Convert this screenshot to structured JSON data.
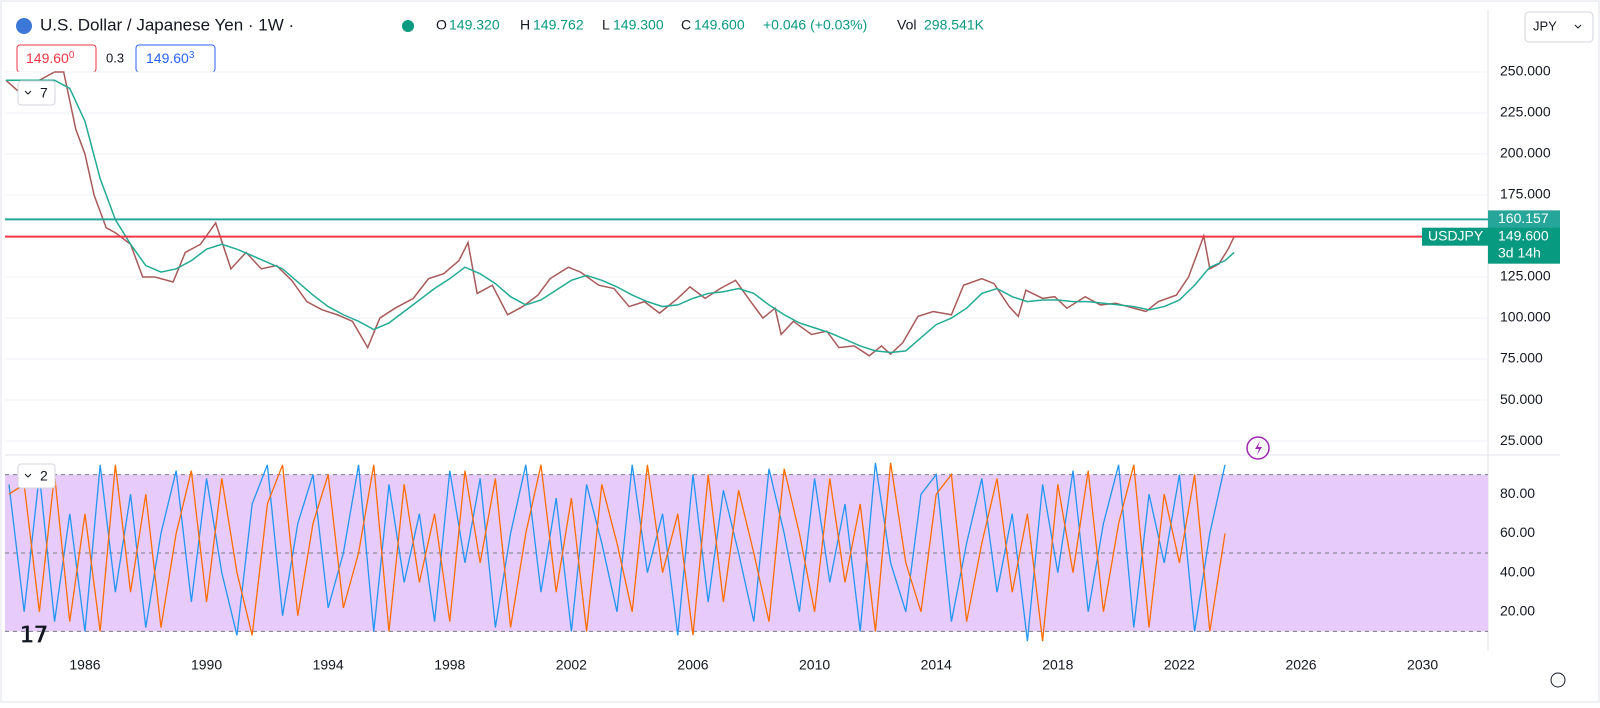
{
  "header": {
    "symbol": "U.S. Dollar / Japanese Yen · 1W ·",
    "open_label": "O",
    "open": "149.320",
    "high_label": "H",
    "high": "149.762",
    "low_label": "L",
    "low": "149.300",
    "close_label": "C",
    "close": "149.600",
    "change": "+0.046 (+0.03%)",
    "vol_label": "Vol",
    "volume": "298.541K",
    "currency": "JPY",
    "countdown": "3d 14h"
  },
  "quote": {
    "bid": "149.60",
    "bid_sup": "0",
    "spread": "0.3",
    "ask": "149.60",
    "ask_sup": "3"
  },
  "indicators": [
    {
      "label": "7"
    },
    {
      "label": "2"
    }
  ],
  "chart_data": [
    {
      "type": "line",
      "xlim": [
        1983.37,
        2032.15
      ],
      "ylim": [
        16.5,
        287.8
      ],
      "yticks": [
        {
          "value": 25,
          "label": "25.000"
        },
        {
          "value": 50,
          "label": "50.000"
        },
        {
          "value": 75,
          "label": "75.000"
        },
        {
          "value": 100,
          "label": "100.000"
        },
        {
          "value": 125,
          "label": "125.000"
        },
        {
          "value": 175,
          "label": "175.000"
        },
        {
          "value": 200,
          "label": "200.000"
        },
        {
          "value": 225,
          "label": "225.000"
        },
        {
          "value": 250,
          "label": "250.000"
        }
      ],
      "grid": true,
      "hlines": [
        {
          "value": 160.157,
          "label": "160.157",
          "color": "#26a69a"
        },
        {
          "value": 149.6,
          "label": "149.600",
          "color": "#f23645"
        }
      ],
      "series": [
        {
          "name": "USDJPY",
          "color": "#a85a5a",
          "x": [
            1983.4,
            1984.0,
            1984.5,
            1985.0,
            1985.3,
            1985.7,
            1986.0,
            1986.3,
            1986.7,
            1987.0,
            1987.5,
            1987.9,
            1988.3,
            1988.9,
            1989.3,
            1989.8,
            1990.3,
            1990.8,
            1991.3,
            1991.8,
            1992.3,
            1992.8,
            1993.3,
            1993.8,
            1994.3,
            1994.8,
            1995.3,
            1995.7,
            1996.2,
            1996.8,
            1997.3,
            1997.8,
            1998.3,
            1998.6,
            1998.9,
            1999.4,
            1999.9,
            2000.4,
            2000.9,
            2001.3,
            2001.9,
            2002.3,
            2002.9,
            2003.4,
            2003.9,
            2004.4,
            2004.9,
            2005.5,
            2005.9,
            2006.4,
            2006.9,
            2007.4,
            2007.9,
            2008.3,
            2008.7,
            2008.9,
            2009.3,
            2009.9,
            2010.4,
            2010.8,
            2011.3,
            2011.8,
            2012.2,
            2012.5,
            2012.9,
            2013.4,
            2013.9,
            2014.5,
            2014.9,
            2015.5,
            2015.9,
            2016.4,
            2016.7,
            2016.95,
            2017.5,
            2017.9,
            2018.3,
            2018.9,
            2019.4,
            2019.9,
            2020.3,
            2020.9,
            2021.3,
            2021.9,
            2022.3,
            2022.8,
            2023.0,
            2023.3,
            2023.6,
            2023.8
          ],
          "values": [
            245,
            235,
            245,
            250,
            250,
            215,
            200,
            175,
            155,
            152,
            145,
            125,
            125,
            122,
            140,
            145,
            158,
            130,
            140,
            130,
            132,
            123,
            110,
            105,
            102,
            98,
            82,
            100,
            106,
            112,
            124,
            127,
            135,
            146,
            115,
            120,
            102,
            107,
            114,
            124,
            131,
            128,
            120,
            118,
            107,
            110,
            103,
            112,
            119,
            112,
            118,
            123,
            110,
            100,
            106,
            90,
            98,
            90,
            92,
            82,
            83,
            77,
            83,
            78,
            85,
            101,
            104,
            102,
            120,
            124,
            121,
            107,
            101,
            117,
            112,
            113,
            106,
            113,
            108,
            109,
            107,
            104,
            110,
            114,
            125,
            150,
            130,
            133,
            142,
            149.6
          ]
        },
        {
          "color": "#22ab94",
          "x": [
            1983.4,
            1985.0,
            1985.5,
            1986.0,
            1986.5,
            1987.0,
            1987.5,
            1988.0,
            1988.5,
            1989.0,
            1989.5,
            1990.0,
            1990.5,
            1991.0,
            1991.5,
            1992.0,
            1992.5,
            1993.0,
            1993.5,
            1994.0,
            1994.5,
            1995.0,
            1995.5,
            1996.0,
            1996.5,
            1997.0,
            1997.5,
            1998.0,
            1998.5,
            1999.0,
            1999.5,
            2000.0,
            2000.5,
            2001.0,
            2001.5,
            2002.0,
            2002.5,
            2003.0,
            2003.5,
            2004.0,
            2004.5,
            2005.0,
            2005.5,
            2006.0,
            2006.5,
            2007.0,
            2007.5,
            2008.0,
            2008.5,
            2009.0,
            2009.5,
            2010.0,
            2010.5,
            2011.0,
            2011.5,
            2012.0,
            2012.5,
            2013.0,
            2013.5,
            2014.0,
            2014.5,
            2015.0,
            2015.5,
            2016.0,
            2016.5,
            2017.0,
            2017.5,
            2018.0,
            2018.5,
            2019.0,
            2019.5,
            2020.0,
            2020.5,
            2021.0,
            2021.5,
            2022.0,
            2022.5,
            2023.0,
            2023.5,
            2023.8
          ],
          "values": [
            245,
            245,
            240,
            220,
            185,
            160,
            145,
            132,
            128,
            130,
            135,
            142,
            145,
            142,
            138,
            134,
            130,
            122,
            114,
            107,
            102,
            98,
            93,
            97,
            104,
            111,
            118,
            124,
            131,
            127,
            121,
            113,
            108,
            111,
            117,
            123,
            126,
            123,
            119,
            114,
            110,
            107,
            108,
            112,
            115,
            116,
            118,
            115,
            108,
            102,
            97,
            94,
            91,
            87,
            83,
            80,
            79,
            80,
            88,
            96,
            100,
            106,
            115,
            118,
            113,
            110,
            111,
            111,
            110,
            110,
            109,
            108,
            107,
            105,
            107,
            111,
            120,
            131,
            135,
            140
          ]
        }
      ]
    },
    {
      "type": "line",
      "xlim": [
        1983.37,
        2032.15
      ],
      "ylim": [
        0,
        100
      ],
      "xticks": [
        1986,
        1990,
        1994,
        1998,
        2002,
        2006,
        2010,
        2014,
        2018,
        2022,
        2026,
        2030
      ],
      "yticks": [
        {
          "value": 20,
          "label": "20.00"
        },
        {
          "value": 40,
          "label": "40.00"
        },
        {
          "value": 60,
          "label": "60.00"
        },
        {
          "value": 80,
          "label": "80.00"
        }
      ],
      "levels": [
        90,
        50,
        10
      ],
      "band_color": "#e7ccfb",
      "x": [
        1983.5,
        1984,
        1984.5,
        1985,
        1985.5,
        1986,
        1986.5,
        1987,
        1987.5,
        1988,
        1988.5,
        1989,
        1989.5,
        1990,
        1990.5,
        1991,
        1991.5,
        1992,
        1992.5,
        1993,
        1993.5,
        1994,
        1994.5,
        1995,
        1995.5,
        1996,
        1996.5,
        1997,
        1997.5,
        1998,
        1998.5,
        1999,
        1999.5,
        2000,
        2000.5,
        2001,
        2001.5,
        2002,
        2002.5,
        2003,
        2003.5,
        2004,
        2004.5,
        2005,
        2005.5,
        2006,
        2006.5,
        2007,
        2007.5,
        2008,
        2008.5,
        2009,
        2009.5,
        2010,
        2010.5,
        2011,
        2011.5,
        2012,
        2012.5,
        2013,
        2013.5,
        2014,
        2014.5,
        2015,
        2015.5,
        2016,
        2016.5,
        2017,
        2017.5,
        2018,
        2018.5,
        2019,
        2019.5,
        2020,
        2020.5,
        2021,
        2021.5,
        2022,
        2022.5,
        2023,
        2023.5
      ],
      "series": [
        {
          "color": "#2196f3",
          "values": [
            85,
            20,
            90,
            15,
            70,
            10,
            95,
            30,
            80,
            12,
            60,
            92,
            25,
            88,
            40,
            8,
            75,
            95,
            18,
            65,
            90,
            22,
            50,
            95,
            10,
            85,
            35,
            70,
            15,
            92,
            45,
            88,
            12,
            60,
            95,
            30,
            78,
            10,
            85,
            55,
            20,
            95,
            40,
            70,
            8,
            90,
            25,
            82,
            50,
            15,
            93,
            60,
            20,
            88,
            35,
            75,
            10,
            96,
            45,
            20,
            80,
            90,
            15,
            55,
            88,
            30,
            70,
            5,
            85,
            40,
            92,
            20,
            65,
            95,
            12,
            80,
            45,
            90,
            10,
            60,
            95
          ]
        },
        {
          "color": "#ff6d00",
          "values": [
            80,
            85,
            20,
            90,
            15,
            70,
            10,
            95,
            30,
            80,
            12,
            60,
            92,
            25,
            88,
            40,
            8,
            75,
            95,
            18,
            65,
            90,
            22,
            50,
            95,
            10,
            85,
            35,
            70,
            15,
            92,
            45,
            88,
            12,
            60,
            95,
            30,
            78,
            10,
            85,
            55,
            20,
            95,
            40,
            70,
            8,
            90,
            25,
            82,
            50,
            15,
            93,
            60,
            20,
            88,
            35,
            75,
            10,
            96,
            45,
            20,
            80,
            90,
            15,
            55,
            88,
            30,
            70,
            5,
            85,
            40,
            92,
            20,
            65,
            95,
            12,
            80,
            45,
            90,
            10,
            60
          ]
        }
      ]
    }
  ]
}
